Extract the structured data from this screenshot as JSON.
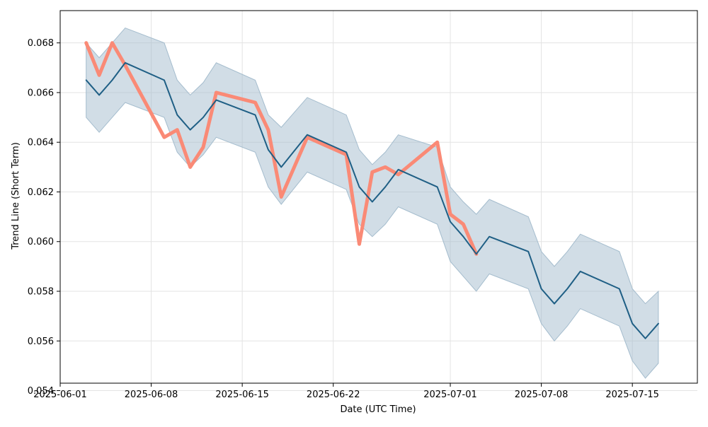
{
  "chart_data": {
    "type": "line",
    "xlabel": "Date (UTC Time)",
    "ylabel": "Trend Line (Short Term)",
    "xlim": [
      "2025-06-01",
      "2025-07-20"
    ],
    "ylim": [
      0.0543,
      0.0693
    ],
    "grid": true,
    "x_ticks": [
      "2025-06-01",
      "2025-06-08",
      "2025-06-15",
      "2025-06-22",
      "2025-07-01",
      "2025-07-08",
      "2025-07-15"
    ],
    "y_ticks": [
      "0.054",
      "0.056",
      "0.058",
      "0.060",
      "0.062",
      "0.064",
      "0.066",
      "0.068"
    ],
    "colors": {
      "trend": "#1f5f85",
      "band": "#a4bccd",
      "actual": "#fa8a76",
      "grid": "#e3e3e3"
    },
    "series": [
      {
        "id": "actual",
        "x": [
          "2025-06-03",
          "2025-06-04",
          "2025-06-05",
          "2025-06-06",
          "2025-06-09",
          "2025-06-10",
          "2025-06-11",
          "2025-06-12",
          "2025-06-13",
          "2025-06-16",
          "2025-06-17",
          "2025-06-18",
          "2025-06-20",
          "2025-06-23",
          "2025-06-24",
          "2025-06-25",
          "2025-06-26",
          "2025-06-27",
          "2025-06-30",
          "2025-07-01",
          "2025-07-02",
          "2025-07-03"
        ],
        "values": [
          0.068,
          0.0667,
          0.068,
          0.0671,
          0.0642,
          0.0645,
          0.063,
          0.0638,
          0.066,
          0.0656,
          0.0645,
          0.0618,
          0.0642,
          0.0635,
          0.0599,
          0.0628,
          0.063,
          0.0627,
          0.064,
          0.0611,
          0.0607,
          0.0595
        ]
      },
      {
        "id": "trend",
        "x": [
          "2025-06-03",
          "2025-06-04",
          "2025-06-05",
          "2025-06-06",
          "2025-06-09",
          "2025-06-10",
          "2025-06-11",
          "2025-06-12",
          "2025-06-13",
          "2025-06-16",
          "2025-06-17",
          "2025-06-18",
          "2025-06-20",
          "2025-06-23",
          "2025-06-24",
          "2025-06-25",
          "2025-06-26",
          "2025-06-27",
          "2025-06-30",
          "2025-07-01",
          "2025-07-02",
          "2025-07-03",
          "2025-07-04",
          "2025-07-07",
          "2025-07-08",
          "2025-07-09",
          "2025-07-10",
          "2025-07-11",
          "2025-07-14",
          "2025-07-15",
          "2025-07-16",
          "2025-07-17"
        ],
        "values": [
          0.0665,
          0.0659,
          0.0665,
          0.0672,
          0.0665,
          0.0651,
          0.0645,
          0.065,
          0.0657,
          0.0651,
          0.0637,
          0.063,
          0.0643,
          0.0636,
          0.0622,
          0.0616,
          0.0622,
          0.0629,
          0.0622,
          0.0608,
          0.0602,
          0.0595,
          0.0602,
          0.0596,
          0.0581,
          0.0575,
          0.0581,
          0.0588,
          0.0581,
          0.0567,
          0.0561,
          0.0567
        ]
      }
    ],
    "band": {
      "x": [
        "2025-06-03",
        "2025-06-04",
        "2025-06-05",
        "2025-06-06",
        "2025-06-09",
        "2025-06-10",
        "2025-06-11",
        "2025-06-12",
        "2025-06-13",
        "2025-06-16",
        "2025-06-17",
        "2025-06-18",
        "2025-06-20",
        "2025-06-23",
        "2025-06-24",
        "2025-06-25",
        "2025-06-26",
        "2025-06-27",
        "2025-06-30",
        "2025-07-01",
        "2025-07-02",
        "2025-07-03",
        "2025-07-04",
        "2025-07-07",
        "2025-07-08",
        "2025-07-09",
        "2025-07-10",
        "2025-07-11",
        "2025-07-14",
        "2025-07-15",
        "2025-07-16",
        "2025-07-17"
      ],
      "upper": [
        0.068,
        0.0674,
        0.068,
        0.0686,
        0.068,
        0.0665,
        0.0659,
        0.0664,
        0.0672,
        0.0665,
        0.0651,
        0.0646,
        0.0658,
        0.0651,
        0.0637,
        0.0631,
        0.0636,
        0.0643,
        0.0638,
        0.0622,
        0.0616,
        0.0611,
        0.0617,
        0.061,
        0.0596,
        0.059,
        0.0596,
        0.0603,
        0.0596,
        0.0581,
        0.0575,
        0.058
      ],
      "lower": [
        0.065,
        0.0644,
        0.065,
        0.0656,
        0.065,
        0.0636,
        0.063,
        0.0635,
        0.0642,
        0.0636,
        0.0622,
        0.0615,
        0.0628,
        0.0621,
        0.0607,
        0.0602,
        0.0607,
        0.0614,
        0.0607,
        0.0592,
        0.0586,
        0.058,
        0.0587,
        0.0581,
        0.0567,
        0.056,
        0.0566,
        0.0573,
        0.0566,
        0.0552,
        0.0545,
        0.0551
      ]
    }
  }
}
